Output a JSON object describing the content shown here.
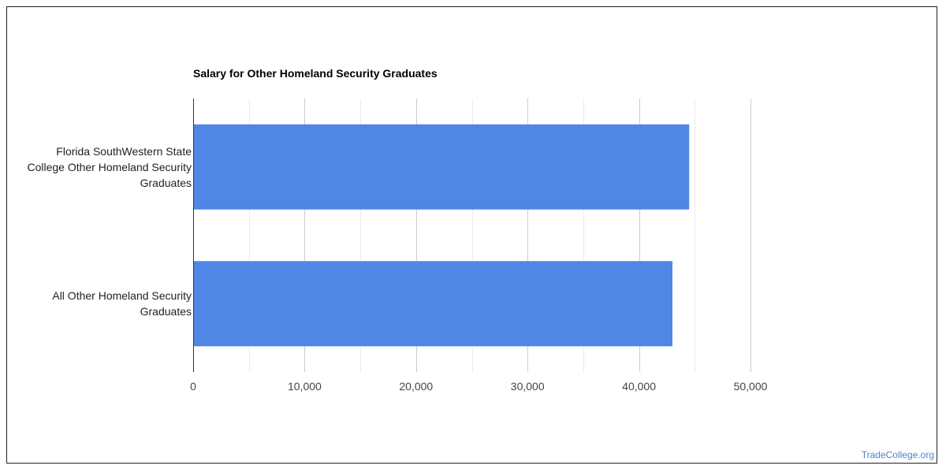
{
  "chart_data": {
    "type": "bar",
    "orientation": "horizontal",
    "title": "Salary for Other Homeland Security Graduates",
    "categories": [
      "Florida SouthWestern State College Other Homeland Security Graduates",
      "All Other Homeland Security Graduates"
    ],
    "category_lines": [
      [
        "Florida SouthWestern State",
        "College Other Homeland Security",
        "Graduates"
      ],
      [
        "All Other Homeland Security",
        "Graduates"
      ]
    ],
    "values": [
      44500,
      43000
    ],
    "xlim": [
      0,
      50000
    ],
    "x_ticks": [
      0,
      10000,
      20000,
      30000,
      40000,
      50000
    ],
    "x_tick_labels": [
      "0",
      "10,000",
      "20,000",
      "30,000",
      "40,000",
      "50,000"
    ],
    "grid": true,
    "bar_color": "#5086e4",
    "xlabel": "",
    "ylabel": ""
  },
  "watermark": "TradeCollege.org"
}
